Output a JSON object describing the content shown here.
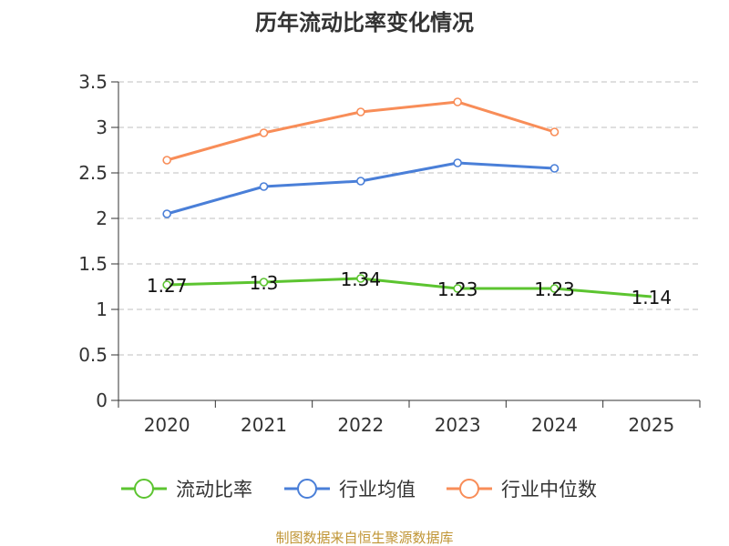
{
  "chart_data": {
    "type": "line",
    "title": "历年流动比率变化情况",
    "categories": [
      "2020",
      "2021",
      "2022",
      "2023",
      "2024",
      "2025"
    ],
    "ylim": [
      0,
      3.5
    ],
    "yticks": [
      "0",
      "0.5",
      "1",
      "1.5",
      "2",
      "2.5",
      "3",
      "3.5"
    ],
    "grid": true,
    "legend_position": "bottom",
    "series": [
      {
        "name": "流动比率",
        "color": "#5cc430",
        "values": [
          1.27,
          1.3,
          1.34,
          1.23,
          1.23,
          1.14
        ],
        "labels": [
          "1.27",
          "1.3",
          "1.34",
          "1.23",
          "1.23",
          "1.14"
        ],
        "markers": [
          true,
          true,
          true,
          true,
          true,
          false
        ]
      },
      {
        "name": "行业均值",
        "color": "#4a7fd8",
        "values": [
          2.05,
          2.35,
          2.41,
          2.61,
          2.55,
          null
        ]
      },
      {
        "name": "行业中位数",
        "color": "#f88d58",
        "values": [
          2.64,
          2.94,
          3.17,
          3.28,
          2.95,
          null
        ]
      }
    ],
    "source": "制图数据来自恒生聚源数据库"
  }
}
